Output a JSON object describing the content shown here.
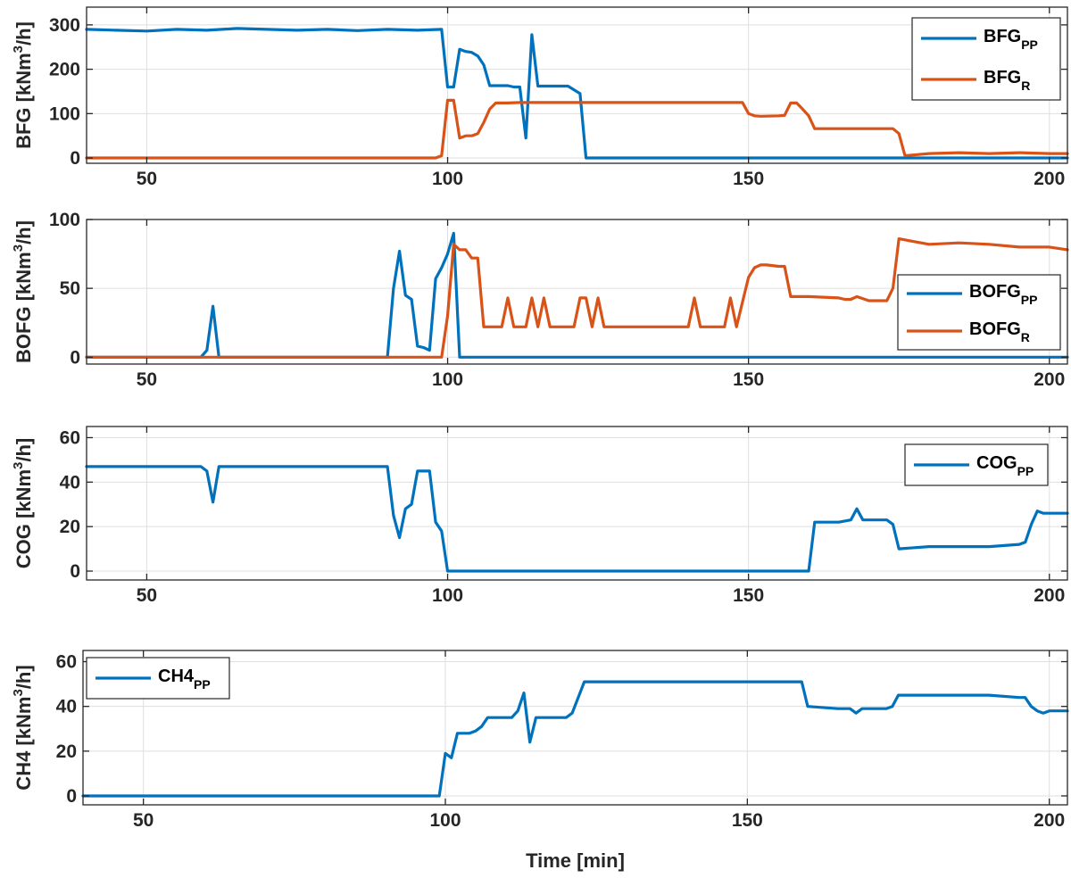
{
  "chart_data": [
    {
      "type": "line",
      "ylabel": {
        "main": "BFG [kNm",
        "sup": "3",
        "end": "/h]"
      },
      "xlim": [
        40,
        203
      ],
      "ylim": [
        -12,
        340
      ],
      "xticks": [
        50,
        100,
        150,
        200
      ],
      "yticks": [
        0,
        100,
        200,
        300
      ],
      "grid": true,
      "legend_position": "top-right",
      "series": [
        {
          "name": "BFG_PP",
          "label": "BFG",
          "sub": "PP",
          "color": "#0072BD",
          "x": [
            40,
            45,
            50,
            55,
            60,
            65,
            70,
            75,
            80,
            85,
            90,
            95,
            99,
            100,
            101,
            102,
            103,
            104,
            105,
            106,
            107,
            110,
            111,
            112,
            113,
            114,
            115,
            120,
            122,
            123,
            130,
            140,
            150,
            160,
            170,
            180,
            190,
            200,
            203
          ],
          "y": [
            290,
            288,
            286,
            290,
            288,
            292,
            290,
            288,
            290,
            287,
            290,
            288,
            290,
            160,
            160,
            245,
            240,
            238,
            230,
            210,
            163,
            163,
            160,
            160,
            45,
            278,
            162,
            162,
            145,
            0,
            0,
            0,
            0,
            0,
            0,
            0,
            0,
            0,
            0
          ]
        },
        {
          "name": "BFG_R",
          "label": "BFG",
          "sub": "R",
          "color": "#D95319",
          "x": [
            40,
            50,
            60,
            70,
            80,
            90,
            98,
            99,
            100,
            101,
            102,
            103,
            104,
            105,
            106,
            107,
            108,
            110,
            112,
            113,
            114,
            115,
            120,
            130,
            140,
            149,
            150,
            151,
            152,
            155,
            156,
            157,
            158,
            159,
            160,
            161,
            165,
            170,
            174,
            175,
            176,
            180,
            185,
            190,
            195,
            200,
            203
          ],
          "y": [
            0,
            0,
            0,
            0,
            0,
            0,
            0,
            5,
            130,
            130,
            45,
            50,
            50,
            55,
            80,
            110,
            124,
            124,
            125,
            125,
            125,
            125,
            125,
            125,
            125,
            125,
            100,
            95,
            94,
            95,
            96,
            124,
            124,
            110,
            95,
            66,
            66,
            66,
            66,
            55,
            5,
            10,
            12,
            10,
            12,
            10,
            10
          ]
        }
      ]
    },
    {
      "type": "line",
      "ylabel": {
        "main": "BOFG [kNm",
        "sup": "3",
        "end": "/h]"
      },
      "xlim": [
        40,
        203
      ],
      "ylim": [
        -5,
        100
      ],
      "xticks": [
        50,
        100,
        150,
        200
      ],
      "yticks": [
        0,
        50,
        100
      ],
      "grid": true,
      "legend_position": "right",
      "series": [
        {
          "name": "BOFG_PP",
          "label": "BOFG",
          "sub": "PP",
          "color": "#0072BD",
          "x": [
            40,
            55,
            59,
            60,
            61,
            62,
            70,
            80,
            89,
            90,
            91,
            92,
            93,
            94,
            95,
            96,
            97,
            98,
            99,
            100,
            101,
            102,
            110,
            150,
            203
          ],
          "y": [
            0,
            0,
            0,
            5,
            37,
            0,
            0,
            0,
            0,
            0,
            50,
            77,
            45,
            42,
            8,
            7,
            5,
            57,
            65,
            75,
            90,
            0,
            0,
            0,
            0
          ]
        },
        {
          "name": "BOFG_R",
          "label": "BOFG",
          "sub": "R",
          "color": "#D95319",
          "x": [
            40,
            50,
            60,
            70,
            80,
            90,
            99,
            100,
            101,
            102,
            103,
            104,
            105,
            106,
            107,
            108,
            109,
            110,
            111,
            112,
            113,
            114,
            115,
            116,
            117,
            118,
            119,
            120,
            121,
            122,
            123,
            124,
            125,
            126,
            130,
            140,
            141,
            142,
            143,
            146,
            147,
            148,
            149,
            150,
            151,
            152,
            153,
            155,
            156,
            157,
            160,
            165,
            166,
            167,
            168,
            170,
            173,
            174,
            175,
            180,
            185,
            190,
            195,
            200,
            203
          ],
          "y": [
            0,
            0,
            0,
            0,
            0,
            0,
            0,
            30,
            82,
            78,
            78,
            72,
            72,
            22,
            22,
            22,
            22,
            43,
            22,
            22,
            22,
            43,
            22,
            43,
            22,
            22,
            22,
            22,
            22,
            43,
            43,
            22,
            43,
            22,
            22,
            22,
            43,
            22,
            22,
            22,
            43,
            22,
            40,
            58,
            65,
            67,
            67,
            66,
            66,
            44,
            44,
            43,
            42,
            42,
            44,
            41,
            41,
            50,
            86,
            82,
            83,
            82,
            80,
            80,
            78
          ]
        }
      ]
    },
    {
      "type": "line",
      "ylabel": {
        "main": "COG [kNm",
        "sup": "3",
        "end": "/h]"
      },
      "xlim": [
        40,
        203
      ],
      "ylim": [
        -4,
        65
      ],
      "xticks": [
        50,
        100,
        150,
        200
      ],
      "yticks": [
        0,
        20,
        40,
        60
      ],
      "grid": true,
      "legend_position": "top-right",
      "series": [
        {
          "name": "COG_PP",
          "label": "COG",
          "sub": "PP",
          "color": "#0072BD",
          "x": [
            40,
            50,
            55,
            59,
            60,
            61,
            62,
            70,
            80,
            89,
            90,
            91,
            92,
            93,
            94,
            95,
            96,
            97,
            98,
            99,
            100,
            110,
            150,
            159,
            160,
            161,
            165,
            167,
            168,
            169,
            170,
            173,
            174,
            175,
            180,
            185,
            190,
            195,
            196,
            197,
            198,
            199,
            200,
            203
          ],
          "y": [
            47,
            47,
            47,
            47,
            45,
            31,
            47,
            47,
            47,
            47,
            47,
            25,
            15,
            28,
            30,
            45,
            45,
            45,
            22,
            18,
            0,
            0,
            0,
            0,
            0,
            22,
            22,
            23,
            28,
            23,
            23,
            23,
            21,
            10,
            11,
            11,
            11,
            12,
            13,
            21,
            27,
            26,
            26,
            26
          ]
        }
      ]
    },
    {
      "type": "line",
      "ylabel": {
        "main": "CH4 [kNm",
        "sup": "3",
        "end": "/h]"
      },
      "xlabel": "Time [min]",
      "xlim": [
        40,
        203
      ],
      "ylim": [
        -4,
        65
      ],
      "xticks": [
        50,
        100,
        150,
        200
      ],
      "yticks": [
        0,
        20,
        40,
        60
      ],
      "grid": true,
      "legend_position": "top-left",
      "series": [
        {
          "name": "CH4_PP",
          "label": "CH4",
          "sub": "PP",
          "color": "#0072BD",
          "x": [
            40,
            50,
            60,
            70,
            80,
            90,
            99,
            100,
            101,
            102,
            103,
            104,
            105,
            106,
            107,
            108,
            109,
            110,
            111,
            112,
            113,
            114,
            115,
            120,
            121,
            122,
            123,
            130,
            140,
            150,
            159,
            160,
            165,
            167,
            168,
            169,
            170,
            173,
            174,
            175,
            180,
            185,
            190,
            195,
            196,
            197,
            198,
            199,
            200,
            203
          ],
          "y": [
            0,
            0,
            0,
            0,
            0,
            0,
            0,
            19,
            17,
            28,
            28,
            28,
            29,
            31,
            35,
            35,
            35,
            35,
            35,
            38,
            46,
            24,
            35,
            35,
            37,
            44,
            51,
            51,
            51,
            51,
            51,
            40,
            39,
            39,
            37,
            39,
            39,
            39,
            40,
            45,
            45,
            45,
            45,
            44,
            44,
            40,
            38,
            37,
            38,
            38
          ]
        }
      ]
    }
  ]
}
